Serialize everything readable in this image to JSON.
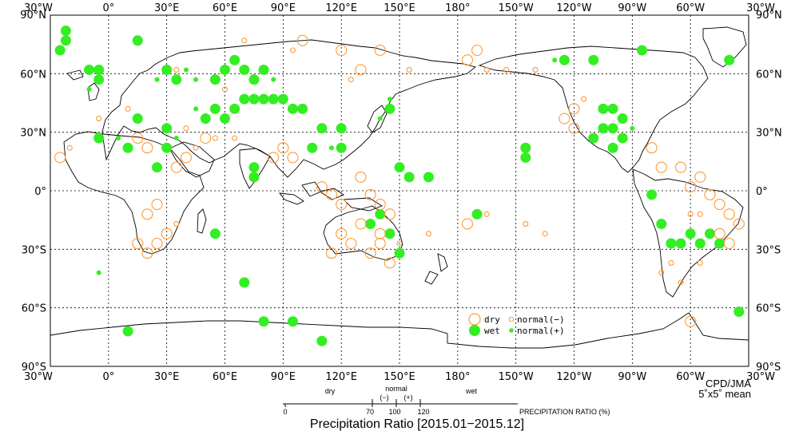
{
  "map": {
    "lon_labels": [
      "30°W",
      "0°",
      "30°E",
      "60°E",
      "90°E",
      "120°E",
      "150°E",
      "180°",
      "150°W",
      "120°W",
      "90°W",
      "60°W",
      "30°W"
    ],
    "lat_labels": [
      "90°N",
      "60°N",
      "30°N",
      "0°",
      "30°S",
      "60°S",
      "90°S"
    ],
    "colors": {
      "wet": "#33ee22",
      "dry": "#ff9933",
      "grid": "#000000",
      "coast": "#000000"
    },
    "grid": "dotted"
  },
  "legend": {
    "dry": "dry",
    "wet": "wet",
    "normal_minus": "normal(−)",
    "normal_plus": "normal(+)"
  },
  "credit": {
    "org": "CPD/JMA",
    "resolution": "5˚x5˚ mean"
  },
  "scale": {
    "categories": {
      "dry": "dry",
      "normal": "normal",
      "wet": "wet",
      "minus": "(−)",
      "plus": "(+)"
    },
    "ticks": [
      "0",
      "70",
      "100",
      "120"
    ],
    "unit_label": "PRECIPITATION RATIO (%)"
  },
  "title": "Precipitation Ratio [2015.01−2015.12]",
  "stations": [
    {
      "lon": -22,
      "lat": 82,
      "cat": "wet",
      "size": 2
    },
    {
      "lon": -22,
      "lat": 77,
      "cat": "wet",
      "size": 2
    },
    {
      "lon": -25,
      "lat": 72,
      "cat": "wet",
      "size": 2
    },
    {
      "lon": -10,
      "lat": 62,
      "cat": "wet",
      "size": 2
    },
    {
      "lon": -5,
      "lat": 62,
      "cat": "wet",
      "size": 2
    },
    {
      "lon": -5,
      "lat": 57,
      "cat": "wet",
      "size": 2
    },
    {
      "lon": -10,
      "lat": 52,
      "cat": "wet",
      "size": 1
    },
    {
      "lon": 15,
      "lat": 77,
      "cat": "wet",
      "size": 2
    },
    {
      "lon": 30,
      "lat": 62,
      "cat": "wet",
      "size": 2
    },
    {
      "lon": 25,
      "lat": 57,
      "cat": "wet",
      "size": 1
    },
    {
      "lon": 35,
      "lat": 57,
      "cat": "wet",
      "size": 2
    },
    {
      "lon": 40,
      "lat": 62,
      "cat": "wet",
      "size": 1
    },
    {
      "lon": 45,
      "lat": 57,
      "cat": "wet",
      "size": 1
    },
    {
      "lon": 55,
      "lat": 57,
      "cat": "wet",
      "size": 2
    },
    {
      "lon": 60,
      "lat": 62,
      "cat": "wet",
      "size": 2
    },
    {
      "lon": 65,
      "lat": 67,
      "cat": "wet",
      "size": 2
    },
    {
      "lon": 70,
      "lat": 62,
      "cat": "wet",
      "size": 2
    },
    {
      "lon": 75,
      "lat": 57,
      "cat": "wet",
      "size": 2
    },
    {
      "lon": 80,
      "lat": 62,
      "cat": "wet",
      "size": 2
    },
    {
      "lon": 85,
      "lat": 57,
      "cat": "wet",
      "size": 1
    },
    {
      "lon": 70,
      "lat": 47,
      "cat": "wet",
      "size": 2
    },
    {
      "lon": 75,
      "lat": 47,
      "cat": "wet",
      "size": 2
    },
    {
      "lon": 80,
      "lat": 47,
      "cat": "wet",
      "size": 2
    },
    {
      "lon": 85,
      "lat": 47,
      "cat": "wet",
      "size": 2
    },
    {
      "lon": 90,
      "lat": 47,
      "cat": "wet",
      "size": 2
    },
    {
      "lon": 95,
      "lat": 42,
      "cat": "wet",
      "size": 2
    },
    {
      "lon": 100,
      "lat": 42,
      "cat": "wet",
      "size": 2
    },
    {
      "lon": 65,
      "lat": 42,
      "cat": "wet",
      "size": 2
    },
    {
      "lon": 60,
      "lat": 37,
      "cat": "wet",
      "size": 2
    },
    {
      "lon": 55,
      "lat": 42,
      "cat": "wet",
      "size": 2
    },
    {
      "lon": 50,
      "lat": 37,
      "cat": "wet",
      "size": 2
    },
    {
      "lon": 45,
      "lat": 42,
      "cat": "wet",
      "size": 1
    },
    {
      "lon": 30,
      "lat": 32,
      "cat": "wet",
      "size": 2
    },
    {
      "lon": 35,
      "lat": 27,
      "cat": "wet",
      "size": 1
    },
    {
      "lon": 30,
      "lat": 22,
      "cat": "wet",
      "size": 2
    },
    {
      "lon": 25,
      "lat": 12,
      "cat": "wet",
      "size": 2
    },
    {
      "lon": -5,
      "lat": 27,
      "cat": "wet",
      "size": 2
    },
    {
      "lon": 5,
      "lat": 27,
      "cat": "wet",
      "size": 1
    },
    {
      "lon": 10,
      "lat": 22,
      "cat": "wet",
      "size": 2
    },
    {
      "lon": 15,
      "lat": 37,
      "cat": "wet",
      "size": 2
    },
    {
      "lon": 75,
      "lat": 12,
      "cat": "wet",
      "size": 2
    },
    {
      "lon": 75,
      "lat": 7,
      "cat": "wet",
      "size": 2
    },
    {
      "lon": 105,
      "lat": 22,
      "cat": "wet",
      "size": 2
    },
    {
      "lon": 110,
      "lat": 32,
      "cat": "wet",
      "size": 2
    },
    {
      "lon": 115,
      "lat": 22,
      "cat": "wet",
      "size": 1
    },
    {
      "lon": 120,
      "lat": 32,
      "cat": "wet",
      "size": 2
    },
    {
      "lon": 120,
      "lat": 22,
      "cat": "wet",
      "size": 2
    },
    {
      "lon": 140,
      "lat": 37,
      "cat": "wet",
      "size": 1
    },
    {
      "lon": 145,
      "lat": 42,
      "cat": "wet",
      "size": 2
    },
    {
      "lon": 145,
      "lat": 47,
      "cat": "wet",
      "size": 1
    },
    {
      "lon": 150,
      "lat": 12,
      "cat": "wet",
      "size": 2
    },
    {
      "lon": 155,
      "lat": 7,
      "cat": "wet",
      "size": 2
    },
    {
      "lon": 165,
      "lat": 7,
      "cat": "wet",
      "size": 2
    },
    {
      "lon": -145,
      "lat": 22,
      "cat": "wet",
      "size": 2
    },
    {
      "lon": -145,
      "lat": 17,
      "cat": "wet",
      "size": 2
    },
    {
      "lon": -170,
      "lat": -12,
      "cat": "wet",
      "size": 2
    },
    {
      "lon": -125,
      "lat": 67,
      "cat": "wet",
      "size": 2
    },
    {
      "lon": -130,
      "lat": 67,
      "cat": "wet",
      "size": 1
    },
    {
      "lon": -110,
      "lat": 67,
      "cat": "wet",
      "size": 2
    },
    {
      "lon": -85,
      "lat": 72,
      "cat": "wet",
      "size": 2
    },
    {
      "lon": -40,
      "lat": 67,
      "cat": "wet",
      "size": 2
    },
    {
      "lon": -105,
      "lat": 42,
      "cat": "wet",
      "size": 2
    },
    {
      "lon": -100,
      "lat": 42,
      "cat": "wet",
      "size": 2
    },
    {
      "lon": -95,
      "lat": 37,
      "cat": "wet",
      "size": 2
    },
    {
      "lon": -100,
      "lat": 32,
      "cat": "wet",
      "size": 2
    },
    {
      "lon": -105,
      "lat": 32,
      "cat": "wet",
      "size": 2
    },
    {
      "lon": -95,
      "lat": 27,
      "cat": "wet",
      "size": 2
    },
    {
      "lon": -100,
      "lat": 22,
      "cat": "wet",
      "size": 2
    },
    {
      "lon": -110,
      "lat": 27,
      "cat": "wet",
      "size": 2
    },
    {
      "lon": -90,
      "lat": 32,
      "cat": "wet",
      "size": 1
    },
    {
      "lon": -80,
      "lat": -2,
      "cat": "wet",
      "size": 2
    },
    {
      "lon": -75,
      "lat": -17,
      "cat": "wet",
      "size": 2
    },
    {
      "lon": -70,
      "lat": -27,
      "cat": "wet",
      "size": 2
    },
    {
      "lon": -65,
      "lat": -27,
      "cat": "wet",
      "size": 2
    },
    {
      "lon": -60,
      "lat": -22,
      "cat": "wet",
      "size": 2
    },
    {
      "lon": -55,
      "lat": -27,
      "cat": "wet",
      "size": 2
    },
    {
      "lon": -50,
      "lat": -22,
      "cat": "wet",
      "size": 2
    },
    {
      "lon": -45,
      "lat": -27,
      "cat": "wet",
      "size": 2
    },
    {
      "lon": -35,
      "lat": -62,
      "cat": "wet",
      "size": 2
    },
    {
      "lon": 55,
      "lat": -22,
      "cat": "wet",
      "size": 2
    },
    {
      "lon": 70,
      "lat": -47,
      "cat": "wet",
      "size": 2
    },
    {
      "lon": 80,
      "lat": -67,
      "cat": "wet",
      "size": 2
    },
    {
      "lon": 95,
      "lat": -67,
      "cat": "wet",
      "size": 2
    },
    {
      "lon": 110,
      "lat": -77,
      "cat": "wet",
      "size": 2
    },
    {
      "lon": 10,
      "lat": -72,
      "cat": "wet",
      "size": 2
    },
    {
      "lon": 140,
      "lat": -12,
      "cat": "wet",
      "size": 2
    },
    {
      "lon": 135,
      "lat": -17,
      "cat": "wet",
      "size": 2
    },
    {
      "lon": 145,
      "lat": -22,
      "cat": "wet",
      "size": 2
    },
    {
      "lon": 150,
      "lat": -32,
      "cat": "wet",
      "size": 2
    },
    {
      "lon": -5,
      "lat": -42,
      "cat": "wet",
      "size": 1
    },
    {
      "lon": 100,
      "lat": 77,
      "cat": "dry",
      "size": 2
    },
    {
      "lon": 120,
      "lat": 72,
      "cat": "dry",
      "size": 2
    },
    {
      "lon": 140,
      "lat": 72,
      "cat": "dry",
      "size": 2
    },
    {
      "lon": -175,
      "lat": 67,
      "cat": "dry",
      "size": 2
    },
    {
      "lon": -170,
      "lat": 72,
      "cat": "dry",
      "size": 2
    },
    {
      "lon": -140,
      "lat": 62,
      "cat": "dry",
      "size": 1
    },
    {
      "lon": -125,
      "lat": 37,
      "cat": "dry",
      "size": 2
    },
    {
      "lon": -120,
      "lat": 32,
      "cat": "dry",
      "size": 2
    },
    {
      "lon": -120,
      "lat": 42,
      "cat": "dry",
      "size": 2
    },
    {
      "lon": -80,
      "lat": 22,
      "cat": "dry",
      "size": 2
    },
    {
      "lon": -75,
      "lat": 12,
      "cat": "dry",
      "size": 2
    },
    {
      "lon": -65,
      "lat": 12,
      "cat": "dry",
      "size": 2
    },
    {
      "lon": -55,
      "lat": 7,
      "cat": "dry",
      "size": 2
    },
    {
      "lon": -60,
      "lat": 2,
      "cat": "dry",
      "size": 2
    },
    {
      "lon": -50,
      "lat": -2,
      "cat": "dry",
      "size": 2
    },
    {
      "lon": -45,
      "lat": -7,
      "cat": "dry",
      "size": 2
    },
    {
      "lon": -40,
      "lat": -12,
      "cat": "dry",
      "size": 2
    },
    {
      "lon": -35,
      "lat": -17,
      "cat": "dry",
      "size": 2
    },
    {
      "lon": -55,
      "lat": -12,
      "cat": "dry",
      "size": 1
    },
    {
      "lon": -60,
      "lat": -67,
      "cat": "dry",
      "size": 2
    },
    {
      "lon": -25,
      "lat": 17,
      "cat": "dry",
      "size": 2
    },
    {
      "lon": -20,
      "lat": 22,
      "cat": "dry",
      "size": 1
    },
    {
      "lon": 15,
      "lat": 27,
      "cat": "dry",
      "size": 2
    },
    {
      "lon": 20,
      "lat": 22,
      "cat": "dry",
      "size": 2
    },
    {
      "lon": 35,
      "lat": 12,
      "cat": "dry",
      "size": 2
    },
    {
      "lon": 40,
      "lat": 17,
      "cat": "dry",
      "size": 2
    },
    {
      "lon": 25,
      "lat": -7,
      "cat": "dry",
      "size": 2
    },
    {
      "lon": 20,
      "lat": -12,
      "cat": "dry",
      "size": 2
    },
    {
      "lon": 15,
      "lat": -27,
      "cat": "dry",
      "size": 2
    },
    {
      "lon": 20,
      "lat": -32,
      "cat": "dry",
      "size": 2
    },
    {
      "lon": 25,
      "lat": -27,
      "cat": "dry",
      "size": 2
    },
    {
      "lon": 30,
      "lat": -22,
      "cat": "dry",
      "size": 2
    },
    {
      "lon": 35,
      "lat": -17,
      "cat": "dry",
      "size": 1
    },
    {
      "lon": 95,
      "lat": 72,
      "cat": "dry",
      "size": 1
    },
    {
      "lon": 90,
      "lat": 22,
      "cat": "dry",
      "size": 2
    },
    {
      "lon": 95,
      "lat": 17,
      "cat": "dry",
      "size": 2
    },
    {
      "lon": 85,
      "lat": 17,
      "cat": "dry",
      "size": 2
    },
    {
      "lon": 110,
      "lat": 2,
      "cat": "dry",
      "size": 2
    },
    {
      "lon": 115,
      "lat": -2,
      "cat": "dry",
      "size": 2
    },
    {
      "lon": 120,
      "lat": -7,
      "cat": "dry",
      "size": 2
    },
    {
      "lon": 130,
      "lat": 7,
      "cat": "dry",
      "size": 2
    },
    {
      "lon": 135,
      "lat": -2,
      "cat": "dry",
      "size": 2
    },
    {
      "lon": 140,
      "lat": -7,
      "cat": "dry",
      "size": 2
    },
    {
      "lon": 145,
      "lat": -12,
      "cat": "dry",
      "size": 2
    },
    {
      "lon": 130,
      "lat": -17,
      "cat": "dry",
      "size": 2
    },
    {
      "lon": 120,
      "lat": -22,
      "cat": "dry",
      "size": 2
    },
    {
      "lon": 140,
      "lat": -22,
      "cat": "dry",
      "size": 2
    },
    {
      "lon": 125,
      "lat": -27,
      "cat": "dry",
      "size": 2
    },
    {
      "lon": 115,
      "lat": -32,
      "cat": "dry",
      "size": 2
    },
    {
      "lon": 135,
      "lat": -32,
      "cat": "dry",
      "size": 2
    },
    {
      "lon": 145,
      "lat": -37,
      "cat": "dry",
      "size": 2
    },
    {
      "lon": 140,
      "lat": -27,
      "cat": "dry",
      "size": 2
    },
    {
      "lon": 150,
      "lat": -27,
      "cat": "dry",
      "size": 1
    },
    {
      "lon": 165,
      "lat": -22,
      "cat": "dry",
      "size": 1
    },
    {
      "lon": -175,
      "lat": -17,
      "cat": "dry",
      "size": 2
    },
    {
      "lon": -165,
      "lat": -12,
      "cat": "dry",
      "size": 1
    },
    {
      "lon": -145,
      "lat": -17,
      "cat": "dry",
      "size": 1
    },
    {
      "lon": -135,
      "lat": -22,
      "cat": "dry",
      "size": 1
    },
    {
      "lon": -75,
      "lat": -42,
      "cat": "dry",
      "size": 1
    },
    {
      "lon": -70,
      "lat": -37,
      "cat": "dry",
      "size": 1
    },
    {
      "lon": -65,
      "lat": -47,
      "cat": "dry",
      "size": 1
    },
    {
      "lon": -55,
      "lat": -37,
      "cat": "dry",
      "size": 1
    },
    {
      "lon": -45,
      "lat": -22,
      "cat": "dry",
      "size": 2
    },
    {
      "lon": -40,
      "lat": -27,
      "cat": "dry",
      "size": 2
    },
    {
      "lon": 35,
      "lat": 62,
      "cat": "dry",
      "size": 1
    },
    {
      "lon": 70,
      "lat": 77,
      "cat": "dry",
      "size": 1
    },
    {
      "lon": 130,
      "lat": 62,
      "cat": "dry",
      "size": 2
    },
    {
      "lon": 125,
      "lat": 57,
      "cat": "dry",
      "size": 1
    },
    {
      "lon": 155,
      "lat": 62,
      "cat": "dry",
      "size": 1
    },
    {
      "lon": -155,
      "lat": 62,
      "cat": "dry",
      "size": 1
    },
    {
      "lon": -165,
      "lat": 62,
      "cat": "dry",
      "size": 1
    },
    {
      "lon": -60,
      "lat": -12,
      "cat": "dry",
      "size": 1
    },
    {
      "lon": 10,
      "lat": 42,
      "cat": "dry",
      "size": 1
    },
    {
      "lon": -5,
      "lat": 37,
      "cat": "dry",
      "size": 1
    },
    {
      "lon": 40,
      "lat": 32,
      "cat": "dry",
      "size": 1
    },
    {
      "lon": 50,
      "lat": 27,
      "cat": "dry",
      "size": 2
    },
    {
      "lon": 45,
      "lat": 22,
      "cat": "dry",
      "size": 1
    },
    {
      "lon": 55,
      "lat": 27,
      "cat": "dry",
      "size": 1
    },
    {
      "lon": 60,
      "lat": 52,
      "cat": "dry",
      "size": 1
    },
    {
      "lon": 65,
      "lat": 27,
      "cat": "dry",
      "size": 1
    },
    {
      "lon": -115,
      "lat": 47,
      "cat": "dry",
      "size": 1
    }
  ]
}
